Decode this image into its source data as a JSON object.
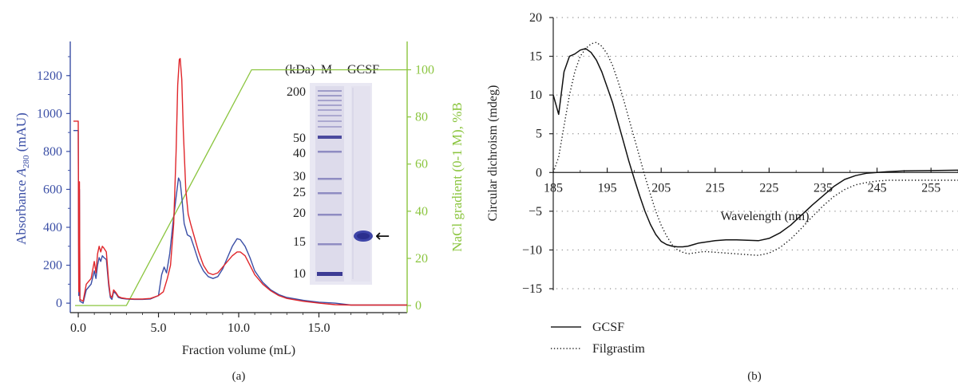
{
  "chart_data": [
    {
      "panel_label": "(a)",
      "type": "line",
      "xlabel": "Fraction volume (mL)",
      "ylabel_left_prefix": "Absorbance ",
      "ylabel_left_var": "A",
      "ylabel_left_sub": "280",
      "ylabel_left_suffix": " (mAU)",
      "ylabel_right": "NaCl gradient (0-1 M), %B",
      "xlim": [
        -0.5,
        20.5
      ],
      "ylim_left": [
        -50,
        1380
      ],
      "ylim_right": [
        -3,
        112
      ],
      "x_ticks": [
        0,
        5,
        10,
        15
      ],
      "x_tick_labels": [
        "0.0",
        "5.0",
        "10.0",
        "15.0"
      ],
      "y_left_ticks": [
        0,
        200,
        400,
        600,
        800,
        1000,
        1200
      ],
      "y_left_tick_labels": [
        "0",
        "200",
        "400",
        "600",
        "800",
        "1000",
        "1200"
      ],
      "y_right_ticks": [
        0,
        20,
        40,
        60,
        80,
        100
      ],
      "y_right_tick_labels": [
        "0",
        "20",
        "40",
        "60",
        "80",
        "100"
      ],
      "colors": {
        "blue": "#3b4fa6",
        "red": "#e0262b",
        "green": "#8bc53f"
      },
      "series": [
        {
          "color": "#3b4fa6",
          "axis": "left",
          "x": [
            -0.3,
            -0.05,
            0.0,
            0.03,
            0.07,
            0.1,
            0.3,
            0.5,
            0.8,
            1.0,
            1.1,
            1.2,
            1.3,
            1.4,
            1.5,
            1.6,
            1.75,
            1.9,
            2.0,
            2.1,
            2.2,
            2.35,
            2.5,
            2.7,
            3.0,
            3.5,
            4.0,
            4.5,
            5.0,
            5.2,
            5.35,
            5.5,
            5.7,
            5.9,
            6.1,
            6.25,
            6.35,
            6.45,
            6.6,
            6.8,
            7.0,
            7.2,
            7.5,
            7.8,
            8.1,
            8.4,
            8.7,
            9.0,
            9.3,
            9.6,
            9.9,
            10.1,
            10.4,
            10.7,
            11.0,
            11.5,
            12.0,
            12.5,
            13.0,
            14.0,
            15.0,
            16.0,
            17.0,
            18.0,
            19.0,
            20.5
          ],
          "y": [
            910,
            910,
            910,
            40,
            600,
            10,
            0,
            70,
            100,
            170,
            130,
            200,
            240,
            220,
            250,
            240,
            230,
            90,
            30,
            20,
            60,
            50,
            30,
            25,
            22,
            20,
            20,
            22,
            40,
            150,
            190,
            160,
            260,
            420,
            560,
            660,
            640,
            560,
            420,
            360,
            350,
            300,
            220,
            170,
            140,
            130,
            140,
            180,
            240,
            300,
            340,
            335,
            300,
            240,
            170,
            110,
            70,
            45,
            30,
            15,
            5,
            0,
            -10,
            -10,
            -10,
            -10
          ]
        },
        {
          "color": "#e0262b",
          "axis": "left",
          "x": [
            -0.3,
            -0.05,
            0.0,
            0.03,
            0.07,
            0.1,
            0.3,
            0.5,
            0.8,
            1.0,
            1.1,
            1.2,
            1.3,
            1.4,
            1.5,
            1.6,
            1.75,
            1.9,
            2.0,
            2.1,
            2.2,
            2.35,
            2.5,
            2.7,
            3.0,
            3.5,
            4.0,
            4.5,
            5.0,
            5.3,
            5.55,
            5.75,
            5.95,
            6.1,
            6.2,
            6.3,
            6.35,
            6.45,
            6.55,
            6.7,
            6.85,
            7.0,
            7.2,
            7.5,
            7.8,
            8.1,
            8.4,
            8.7,
            9.0,
            9.3,
            9.6,
            9.9,
            10.1,
            10.4,
            10.7,
            11.0,
            11.5,
            12.0,
            12.5,
            13.0,
            14.0,
            15.0,
            16.0,
            17.0,
            18.0,
            19.0,
            20.5
          ],
          "y": [
            960,
            960,
            960,
            60,
            640,
            20,
            10,
            100,
            130,
            220,
            160,
            260,
            300,
            270,
            300,
            290,
            270,
            110,
            40,
            30,
            70,
            55,
            35,
            28,
            24,
            22,
            22,
            25,
            40,
            60,
            130,
            200,
            420,
            800,
            1150,
            1285,
            1290,
            1180,
            900,
            600,
            470,
            420,
            360,
            270,
            200,
            160,
            150,
            160,
            190,
            220,
            250,
            270,
            270,
            250,
            200,
            150,
            100,
            65,
            40,
            25,
            10,
            0,
            -8,
            -10,
            -10,
            -10,
            -10
          ]
        },
        {
          "color": "#8bc53f",
          "axis": "right",
          "x": [
            -0.2,
            3.0,
            10.8,
            20.5
          ],
          "y": [
            0,
            0,
            100,
            100
          ]
        }
      ],
      "inset": {
        "header_unit": "(kDa)",
        "lane_labels": [
          "M",
          "GCSF"
        ],
        "marker_labels": [
          "200",
          "50",
          "40",
          "30",
          "25",
          "20",
          "15",
          "10"
        ],
        "arrow": "←"
      }
    },
    {
      "panel_label": "(b)",
      "type": "line",
      "xlabel": "Wavelength (nm)",
      "ylabel": "Circular dichroism (mdeg)",
      "xlim": [
        185,
        260
      ],
      "ylim": [
        -15,
        20
      ],
      "x_ticks": [
        185,
        195,
        205,
        215,
        225,
        235,
        245,
        255
      ],
      "x_tick_labels": [
        "185",
        "195",
        "205",
        "215",
        "225",
        "235",
        "245",
        "255"
      ],
      "y_ticks": [
        20,
        15,
        10,
        5,
        0,
        -5,
        -10,
        -15
      ],
      "y_tick_labels": [
        "20",
        "15",
        "10",
        "5",
        "0",
        "−5",
        "−10",
        "−15"
      ],
      "grid": "horizontal dotted",
      "legend_position": "bottom-left",
      "series": [
        {
          "name": "GCSF",
          "style": "solid",
          "x": [
            185,
            186,
            187,
            188,
            189,
            190,
            191,
            192,
            193,
            194,
            195,
            196,
            197,
            198,
            199,
            200,
            201,
            202,
            203,
            204,
            205,
            206,
            207,
            208,
            209,
            210,
            211,
            212,
            213,
            215,
            217,
            219,
            221,
            223,
            225,
            227,
            229,
            231,
            233,
            235,
            237,
            239,
            241,
            243,
            245,
            247,
            250,
            255,
            260
          ],
          "y": [
            10,
            7.5,
            13,
            15,
            15.3,
            15.8,
            16,
            15.5,
            14.5,
            13,
            11,
            9,
            6.5,
            4,
            1.5,
            -0.8,
            -3,
            -5,
            -6.7,
            -8,
            -8.9,
            -9.3,
            -9.5,
            -9.6,
            -9.6,
            -9.5,
            -9.3,
            -9.1,
            -9.0,
            -8.8,
            -8.7,
            -8.7,
            -8.75,
            -8.8,
            -8.5,
            -7.8,
            -6.8,
            -5.5,
            -4.2,
            -3.0,
            -1.8,
            -0.9,
            -0.4,
            -0.1,
            0.0,
            0.1,
            0.2,
            0.25,
            0.3
          ]
        },
        {
          "name": "Filgrastim",
          "style": "dotted",
          "x": [
            185,
            186,
            187,
            188,
            189,
            190,
            191,
            192,
            193,
            194,
            195,
            196,
            197,
            198,
            199,
            200,
            201,
            202,
            203,
            204,
            205,
            206,
            207,
            208,
            209,
            210,
            211,
            212,
            213,
            215,
            217,
            219,
            221,
            223,
            225,
            227,
            229,
            231,
            233,
            235,
            237,
            239,
            241,
            243,
            245,
            247,
            250,
            255,
            260
          ],
          "y": [
            0,
            2,
            6,
            10,
            13,
            15,
            16,
            16.6,
            16.8,
            16.3,
            15.3,
            13.8,
            11.8,
            9.5,
            7,
            4.5,
            2,
            -0.5,
            -2.8,
            -5,
            -6.8,
            -8.2,
            -9.3,
            -10,
            -10.3,
            -10.5,
            -10.4,
            -10.3,
            -10.2,
            -10.3,
            -10.4,
            -10.5,
            -10.6,
            -10.7,
            -10.4,
            -9.7,
            -8.6,
            -7.2,
            -5.7,
            -4.3,
            -3.1,
            -2.2,
            -1.6,
            -1.3,
            -1.1,
            -1.0,
            -1.0,
            -1.0,
            -1.0
          ]
        }
      ]
    }
  ]
}
